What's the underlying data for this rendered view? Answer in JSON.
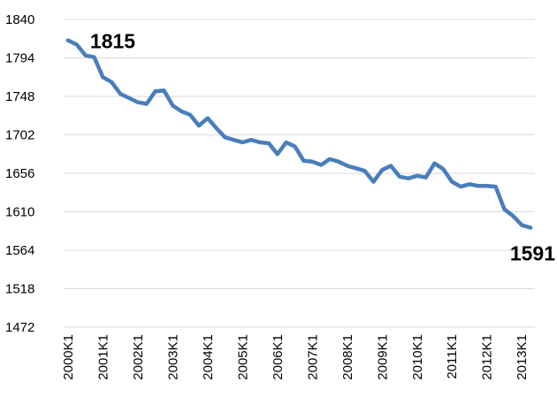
{
  "chart_data": {
    "type": "line",
    "categories": [
      "2000K1",
      null,
      null,
      null,
      "2001K1",
      null,
      null,
      null,
      "2002K1",
      null,
      null,
      null,
      "2003K1",
      null,
      null,
      null,
      "2004K1",
      null,
      null,
      null,
      "2005K1",
      null,
      null,
      null,
      "2006K1",
      null,
      null,
      null,
      "2007K1",
      null,
      null,
      null,
      "2008K1",
      null,
      null,
      null,
      "2009K1",
      null,
      null,
      null,
      "2010K1",
      null,
      null,
      null,
      "2011K1",
      null,
      null,
      null,
      "2012K1",
      null,
      null,
      null,
      "2013K1",
      null
    ],
    "series": [
      {
        "color": "#4a7ebb",
        "values": [
          1815,
          1810,
          1797,
          1795,
          1771,
          1765,
          1751,
          1746,
          1741,
          1739,
          1754,
          1755,
          1737,
          1730,
          1726,
          1713,
          1722,
          1710,
          1699,
          1696,
          1693,
          1696,
          1693,
          1692,
          1679,
          1693,
          1688,
          1671,
          1670,
          1666,
          1673,
          1670,
          1665,
          1662,
          1659,
          1646,
          1660,
          1665,
          1652,
          1650,
          1653,
          1651,
          1668,
          1661,
          1646,
          1640,
          1643,
          1641,
          1641,
          1640,
          1613,
          1605,
          1594,
          1591
        ]
      }
    ],
    "ylim": [
      1472,
      1840
    ],
    "yticks": [
      1472,
      1518,
      1564,
      1610,
      1656,
      1702,
      1748,
      1794,
      1840
    ],
    "grid": true
  }
}
